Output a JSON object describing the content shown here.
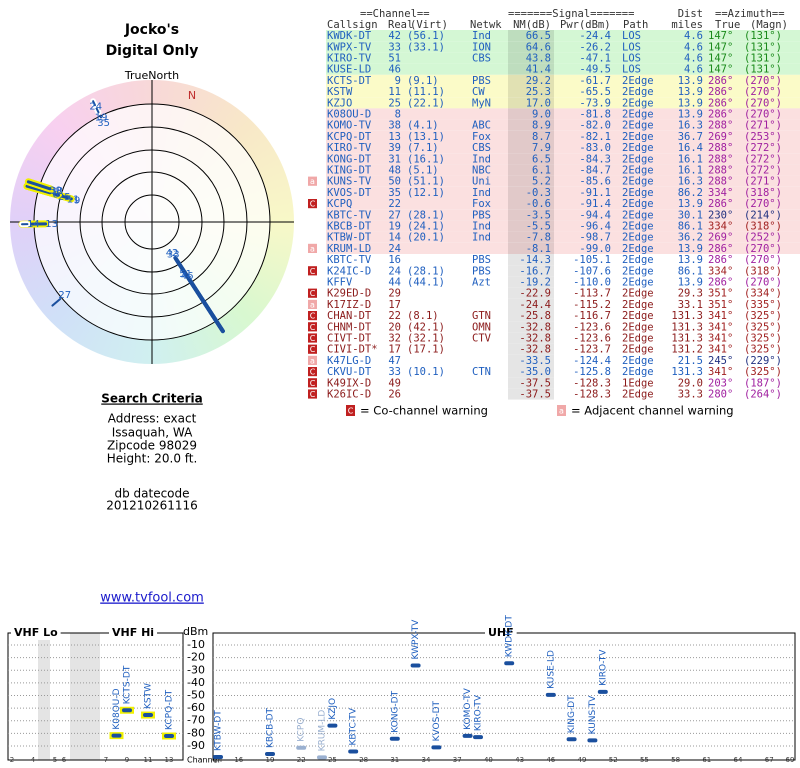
{
  "header": {
    "title": "Jocko's",
    "subtitle": "Digital Only",
    "north_label": "TrueNorth",
    "compass_label": "N"
  },
  "polar": {
    "items": [
      {
        "label": "42",
        "azimuth": 147,
        "nm": 66.5
      },
      {
        "label": "33",
        "azimuth": 147,
        "nm": 64.6
      },
      {
        "label": "51",
        "azimuth": 147,
        "nm": 43.8
      },
      {
        "label": "46",
        "azimuth": 147,
        "nm": 41.4
      },
      {
        "label": "9",
        "azimuth": 286,
        "nm": 29.2
      },
      {
        "label": "11",
        "azimuth": 286,
        "nm": 25.3
      },
      {
        "label": "25",
        "azimuth": 286,
        "nm": 17.0
      },
      {
        "label": "8",
        "azimuth": 286,
        "nm": 9.0
      },
      {
        "label": "38",
        "azimuth": 288,
        "nm": 8.9
      },
      {
        "label": "39",
        "azimuth": 288,
        "nm": 7.9
      },
      {
        "label": "13",
        "azimuth": 269,
        "nm": 8.7
      },
      {
        "label": "14",
        "azimuth": 269,
        "nm": -7.8
      },
      {
        "label": "35",
        "azimuth": 334,
        "nm": -0.3
      },
      {
        "label": "19",
        "azimuth": 334,
        "nm": -5.5
      },
      {
        "label": "24",
        "azimuth": 334,
        "nm": -16.7
      },
      {
        "label": "27",
        "azimuth": 230,
        "nm": -3.5
      }
    ]
  },
  "search": {
    "heading": "Search Criteria",
    "lines": [
      "Address: exact",
      "Issaquah, WA",
      "Zipcode 98029",
      "Height: 20.0 ft."
    ]
  },
  "datecode": {
    "label": "db datecode",
    "value": "201210261116"
  },
  "link": "www.tvfool.com",
  "table": {
    "header1": [
      "==Channel==",
      "=======Signal=======",
      "Dist",
      "==Azimuth=="
    ],
    "header2": [
      "Callsign",
      "Real",
      "(Virt)",
      "Netwk",
      "NM(dB)",
      "Pwr(dBm)",
      "Path",
      "miles",
      "True",
      "(Magn)"
    ],
    "rows": [
      {
        "cells": [
          "KWDK-DT",
          "42",
          "(56.1)",
          "Ind",
          "66.5",
          "-24.4",
          "LOS",
          "4.6",
          "147°",
          "(131°)"
        ],
        "bg": "#d4f7d4",
        "fg": "#1f5fbf",
        "az": "#1a8a1a"
      },
      {
        "cells": [
          "KWPX-TV",
          "33",
          "(33.1)",
          "ION",
          "64.6",
          "-26.2",
          "LOS",
          "4.6",
          "147°",
          "(131°)"
        ],
        "bg": "#d4f7d4",
        "fg": "#1f5fbf",
        "az": "#1a8a1a"
      },
      {
        "cells": [
          "KIRO-TV",
          "51",
          null,
          "CBS",
          "43.8",
          "-47.1",
          "LOS",
          "4.6",
          "147°",
          "(131°)"
        ],
        "bg": "#d4f7d4",
        "fg": "#1f5fbf",
        "az": "#1a8a1a"
      },
      {
        "cells": [
          "KUSE-LD",
          "46",
          null,
          null,
          "41.4",
          "-49.5",
          "LOS",
          "4.6",
          "147°",
          "(131°)"
        ],
        "bg": "#d4f7d4",
        "fg": "#1f5fbf",
        "az": "#1a8a1a"
      },
      {
        "cells": [
          "KCTS-DT",
          "9",
          "(9.1)",
          "PBS",
          "29.2",
          "-61.7",
          "2Edge",
          "13.9",
          "286°",
          "(270°)"
        ],
        "bg": "#fbfbc8",
        "fg": "#1f5fbf",
        "az": "#a020a0"
      },
      {
        "cells": [
          "KSTW",
          "11",
          "(11.1)",
          "CW",
          "25.3",
          "-65.5",
          "2Edge",
          "13.9",
          "286°",
          "(270°)"
        ],
        "bg": "#fbfbc8",
        "fg": "#1f5fbf",
        "az": "#a020a0"
      },
      {
        "cells": [
          "KZJO",
          "25",
          "(22.1)",
          "MyN",
          "17.0",
          "-73.9",
          "2Edge",
          "13.9",
          "286°",
          "(270°)"
        ],
        "bg": "#fbfbc8",
        "fg": "#1f5fbf",
        "az": "#a020a0"
      },
      {
        "cells": [
          "K08OU-D",
          "8",
          null,
          null,
          "9.0",
          "-81.8",
          "2Edge",
          "13.9",
          "286°",
          "(270°)"
        ],
        "bg": "#fbe0e0",
        "fg": "#1f5fbf",
        "az": "#a020a0"
      },
      {
        "cells": [
          "KOMO-TV",
          "38",
          "(4.1)",
          "ABC",
          "8.9",
          "-82.0",
          "2Edge",
          "16.3",
          "288°",
          "(271°)"
        ],
        "bg": "#fbe0e0",
        "fg": "#1f5fbf",
        "az": "#a020a0"
      },
      {
        "cells": [
          "KCPQ-DT",
          "13",
          "(13.1)",
          "Fox",
          "8.7",
          "-82.1",
          "2Edge",
          "36.7",
          "269°",
          "(253°)"
        ],
        "bg": "#fbe0e0",
        "fg": "#1f5fbf",
        "az": "#a020a0"
      },
      {
        "cells": [
          "KIRO-TV",
          "39",
          "(7.1)",
          "CBS",
          "7.9",
          "-83.0",
          "2Edge",
          "16.4",
          "288°",
          "(272°)"
        ],
        "bg": "#fbe0e0",
        "fg": "#1f5fbf",
        "az": "#a020a0"
      },
      {
        "cells": [
          "KONG-DT",
          "31",
          "(16.1)",
          "Ind",
          "6.5",
          "-84.3",
          "2Edge",
          "16.1",
          "288°",
          "(272°)"
        ],
        "bg": "#fbe0e0",
        "fg": "#1f5fbf",
        "az": "#a020a0"
      },
      {
        "cells": [
          "KING-DT",
          "48",
          "(5.1)",
          "NBC",
          "6.1",
          "-84.7",
          "2Edge",
          "16.1",
          "288°",
          "(272°)"
        ],
        "bg": "#fbe0e0",
        "fg": "#1f5fbf",
        "az": "#a020a0"
      },
      {
        "cells": [
          "KUNS-TV",
          "50",
          "(51.1)",
          "Uni",
          "5.2",
          "-85.6",
          "2Edge",
          "16.3",
          "288°",
          "(271°)"
        ],
        "bg": "#fbe0e0",
        "fg": "#1f5fbf",
        "az": "#a020a0",
        "warning": "adj"
      },
      {
        "cells": [
          "KVOS-DT",
          "35",
          "(12.1)",
          "Ind",
          "-0.3",
          "-91.1",
          "2Edge",
          "86.2",
          "334°",
          "(318°)"
        ],
        "bg": "#fbe0e0",
        "fg": "#1f5fbf",
        "az": "#a020a0"
      },
      {
        "cells": [
          "KCPQ",
          "22",
          null,
          "Fox",
          "-0.6",
          "-91.4",
          "2Edge",
          "13.9",
          "286°",
          "(270°)"
        ],
        "bg": "#fbe0e0",
        "fg": "#1f5fbf",
        "az": "#a020a0",
        "warning": "co"
      },
      {
        "cells": [
          "KBTC-TV",
          "27",
          "(28.1)",
          "PBS",
          "-3.5",
          "-94.4",
          "2Edge",
          "30.1",
          "230°",
          "(214°)"
        ],
        "bg": "#fbe0e0",
        "fg": "#1f5fbf",
        "az": "#203080"
      },
      {
        "cells": [
          "KBCB-DT",
          "19",
          "(24.1)",
          "Ind",
          "-5.5",
          "-96.4",
          "2Edge",
          "86.1",
          "334°",
          "(318°)"
        ],
        "bg": "#fbe0e0",
        "fg": "#1f5fbf",
        "az": "#a02020"
      },
      {
        "cells": [
          "KTBW-DT",
          "14",
          "(20.1)",
          "Ind",
          "-7.8",
          "-98.7",
          "2Edge",
          "36.2",
          "269°",
          "(252°)"
        ],
        "bg": "#fbe0e0",
        "fg": "#1f5fbf",
        "az": "#a020a0"
      },
      {
        "cells": [
          "KRUM-LD",
          "24",
          null,
          null,
          "-8.1",
          "-99.0",
          "2Edge",
          "13.9",
          "286°",
          "(270°)"
        ],
        "bg": "#fbe0e0",
        "fg": "#1f5fbf",
        "az": "#a020a0",
        "warning": "adj"
      },
      {
        "cells": [
          "KBTC-TV",
          "16",
          null,
          "PBS",
          "-14.3",
          "-105.1",
          "2Edge",
          "13.9",
          "286°",
          "(270°)"
        ],
        "bg": "#ffffff",
        "fg": "#1f5fbf",
        "az": "#a020a0"
      },
      {
        "cells": [
          "K24IC-D",
          "24",
          "(28.1)",
          "PBS",
          "-16.7",
          "-107.6",
          "2Edge",
          "86.1",
          "334°",
          "(318°)"
        ],
        "bg": "#ffffff",
        "fg": "#1f5fbf",
        "az": "#a02020",
        "warning": "co"
      },
      {
        "cells": [
          "KFFV",
          "44",
          "(44.1)",
          "Azt",
          "-19.2",
          "-110.0",
          "2Edge",
          "13.9",
          "286°",
          "(270°)"
        ],
        "bg": "#ffffff",
        "fg": "#1f5fbf",
        "az": "#a020a0"
      },
      {
        "cells": [
          "K29ED-D",
          "29",
          null,
          null,
          "-22.9",
          "-113.7",
          "2Edge",
          "29.3",
          "351°",
          "(334°)"
        ],
        "bg": "#ffffff",
        "fg": "#8b1a1a",
        "az": "#a02020",
        "warning": "co"
      },
      {
        "cells": [
          "K17IZ-D",
          "17",
          null,
          null,
          "-24.4",
          "-115.2",
          "2Edge",
          "33.1",
          "351°",
          "(335°)"
        ],
        "bg": "#ffffff",
        "fg": "#8b1a1a",
        "az": "#a02020",
        "warning": "adj"
      },
      {
        "cells": [
          "CHAN-DT",
          "22",
          "(8.1)",
          "GTN",
          "-25.8",
          "-116.7",
          "2Edge",
          "131.3",
          "341°",
          "(325°)"
        ],
        "bg": "#ffffff",
        "fg": "#8b1a1a",
        "az": "#a02020",
        "warning": "co"
      },
      {
        "cells": [
          "CHNM-DT",
          "20",
          "(42.1)",
          "OMN",
          "-32.8",
          "-123.6",
          "2Edge",
          "131.3",
          "341°",
          "(325°)"
        ],
        "bg": "#ffffff",
        "fg": "#8b1a1a",
        "az": "#a02020",
        "warning": "co"
      },
      {
        "cells": [
          "CIVT-DT",
          "32",
          "(32.1)",
          "CTV",
          "-32.8",
          "-123.6",
          "2Edge",
          "131.3",
          "341°",
          "(325°)"
        ],
        "bg": "#ffffff",
        "fg": "#8b1a1a",
        "az": "#a02020",
        "warning": "co"
      },
      {
        "cells": [
          "CIVI-DT*",
          "17",
          "(17.1)",
          null,
          "-32.8",
          "-123.7",
          "2Edge",
          "131.2",
          "341°",
          "(325°)"
        ],
        "bg": "#ffffff",
        "fg": "#8b1a1a",
        "az": "#a02020",
        "warning": "co"
      },
      {
        "cells": [
          "K47LG-D",
          "47",
          null,
          null,
          "-33.5",
          "-124.4",
          "2Edge",
          "21.5",
          "245°",
          "(229°)"
        ],
        "bg": "#ffffff",
        "fg": "#1f5fbf",
        "az": "#203080",
        "warning": "adj"
      },
      {
        "cells": [
          "CKVU-DT",
          "33",
          "(10.1)",
          "CTN",
          "-35.0",
          "-125.8",
          "2Edge",
          "131.3",
          "341°",
          "(325°)"
        ],
        "bg": "#ffffff",
        "fg": "#1f5fbf",
        "az": "#a02020",
        "warning": "co"
      },
      {
        "cells": [
          "K49IX-D",
          "49",
          null,
          null,
          "-37.5",
          "-128.3",
          "1Edge",
          "29.0",
          "203°",
          "(187°)"
        ],
        "bg": "#ffffff",
        "fg": "#8b1a1a",
        "az": "#a020a0",
        "warning": "co"
      },
      {
        "cells": [
          "K26IC-D",
          "26",
          null,
          null,
          "-37.5",
          "-128.3",
          "2Edge",
          "33.3",
          "280°",
          "(264°)"
        ],
        "bg": "#ffffff",
        "fg": "#8b1a1a",
        "az": "#a020a0",
        "warning": "co"
      }
    ]
  },
  "warnings": {
    "co": {
      "icon": "C",
      "text": "= Co-channel warning",
      "color": "#c02020"
    },
    "adj": {
      "icon": "a",
      "text": "= Adjacent channel warning",
      "color": "#f0a8a8"
    }
  },
  "spectrum": {
    "sections": [
      "VHF Lo",
      "VHF Hi",
      "UHF"
    ],
    "y_unit": "dBm",
    "x_label": "Channel",
    "ylim": [
      -100,
      0
    ],
    "yticks": [
      -10,
      -20,
      -30,
      -40,
      -50,
      -60,
      -70,
      -80,
      -90
    ],
    "xticks": [
      2,
      4,
      5,
      6,
      7,
      9,
      11,
      13,
      14,
      16,
      19,
      22,
      25,
      28,
      31,
      34,
      37,
      40,
      43,
      46,
      49,
      52,
      55,
      58,
      61,
      64,
      67,
      69
    ],
    "points": [
      {
        "label": "K08OU-D",
        "channel": 8,
        "pwr": -81.8,
        "halo": "#f0f000"
      },
      {
        "label": "KCTS-DT",
        "channel": 9,
        "pwr": -61.7,
        "halo": "#f0f000"
      },
      {
        "label": "KSTW",
        "channel": 11,
        "pwr": -65.5,
        "halo": "#f0f000"
      },
      {
        "label": "KCPQ-DT",
        "channel": 13,
        "pwr": -82.1,
        "halo": "#f0f000"
      },
      {
        "label": "KTBW-DT",
        "channel": 14,
        "pwr": -98.7
      },
      {
        "label": "KBCB-DT",
        "channel": 19,
        "pwr": -96.4
      },
      {
        "label": "KCPQ",
        "channel": 22,
        "pwr": -91.4,
        "faded": true
      },
      {
        "label": "KRUM-LD",
        "channel": 24,
        "pwr": -99.0,
        "faded": true
      },
      {
        "label": "KZJO",
        "channel": 25,
        "pwr": -73.9
      },
      {
        "label": "KBTC-TV",
        "channel": 27,
        "pwr": -94.4
      },
      {
        "label": "KONG-DT",
        "channel": 31,
        "pwr": -84.3
      },
      {
        "label": "KWPX-TV",
        "channel": 33,
        "pwr": -26.2
      },
      {
        "label": "KVOS-DT",
        "channel": 35,
        "pwr": -91.1
      },
      {
        "label": "KOMO-TV",
        "channel": 38,
        "pwr": -82.0
      },
      {
        "label": "KIRO-TV",
        "channel": 39,
        "pwr": -83.0
      },
      {
        "label": "KWDK-DT",
        "channel": 42,
        "pwr": -24.4
      },
      {
        "label": "KUSE-LD",
        "channel": 46,
        "pwr": -49.5
      },
      {
        "label": "KING-DT",
        "channel": 48,
        "pwr": -84.7
      },
      {
        "label": "KUNS-TV",
        "channel": 50,
        "pwr": -85.6
      },
      {
        "label": "KIRO-TV",
        "channel": 51,
        "pwr": -47.1
      }
    ]
  }
}
